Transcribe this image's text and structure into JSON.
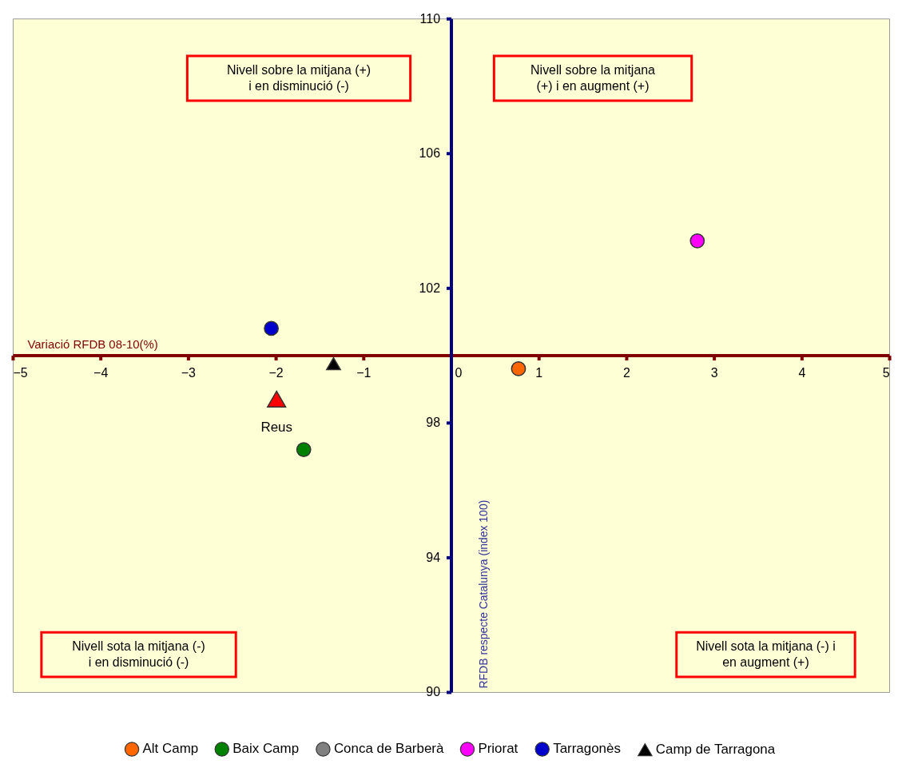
{
  "chart_data": {
    "type": "scatter",
    "xlabel": "Variació RFDB 08-10(%)",
    "ylabel": "RFDB respecte Catalunya (index 100)",
    "xlim": [
      -5,
      5
    ],
    "xticks": [
      -5,
      -4,
      -3,
      -2,
      -1,
      0,
      1,
      2,
      3,
      4,
      5
    ],
    "ylim": [
      90,
      110
    ],
    "yticks": [
      90,
      94,
      98,
      102,
      106,
      110
    ],
    "grid": false,
    "legend": "bottom",
    "series": [
      {
        "name": "Alt Camp",
        "color": "#ff6600",
        "marker": "circle",
        "x": [
          0.77
        ],
        "values": [
          99.6
        ]
      },
      {
        "name": "Baix Camp",
        "color": "#008000",
        "marker": "circle",
        "x": [
          -1.68
        ],
        "values": [
          97.2
        ]
      },
      {
        "name": "Conca de Barberà",
        "color": "#808080",
        "marker": "circle",
        "x": [
          null
        ],
        "values": [
          null
        ]
      },
      {
        "name": "Priorat",
        "color": "#ff00ff",
        "marker": "circle",
        "x": [
          2.81
        ],
        "values": [
          103.4
        ]
      },
      {
        "name": "Tarragonès",
        "color": "#0000cc",
        "marker": "circle",
        "x": [
          -2.05
        ],
        "values": [
          100.8
        ]
      },
      {
        "name": "Camp de Tarragona",
        "color": "#000000",
        "marker": "triangle",
        "x": [
          -1.34
        ],
        "values": [
          99.75
        ]
      },
      {
        "color": "#ff0000",
        "marker": "triangle",
        "x": [
          -1.99
        ],
        "values": [
          98.7
        ]
      }
    ],
    "annotations": [
      "Nivell sobre la mitjana (+)\ni en disminució (-)",
      "Nivell sobre la mitjana\n(+) i en augment (+)",
      "Nivell sota la mitjana (-)\ni en disminució (-)",
      "Nivell sota la mitjana (-) i\nen augment (+)",
      {
        "text": "Reus",
        "x": -1.99,
        "y": 98.7
      }
    ]
  }
}
